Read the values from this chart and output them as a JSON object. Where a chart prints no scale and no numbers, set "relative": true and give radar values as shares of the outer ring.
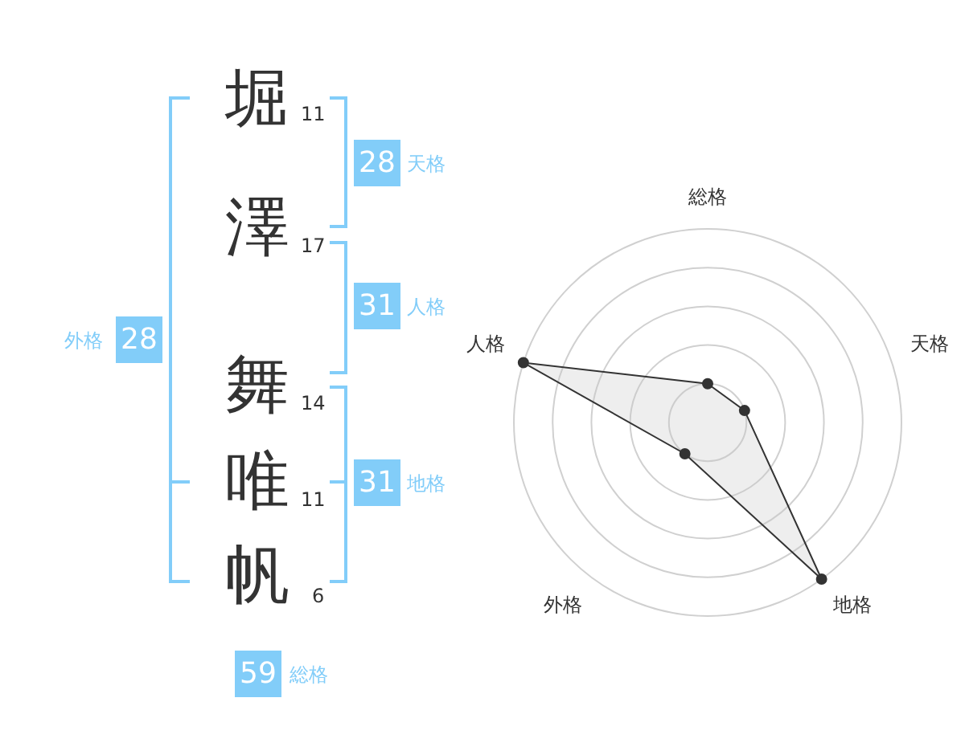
{
  "chart_data": [
    {
      "type": "other",
      "categories": [
        "堀",
        "澤",
        "舞",
        "唯",
        "帆"
      ],
      "values": [
        11,
        17,
        14,
        11,
        6
      ],
      "data_labels": true,
      "color": "#82cdf9",
      "annotations": [
        "28",
        "天格",
        "31",
        "人格",
        "31",
        "地格",
        "28",
        "外格",
        "59",
        "総格"
      ]
    },
    {
      "type": "radar",
      "categories": [
        "総格",
        "天格",
        "地格",
        "外格",
        "人格"
      ],
      "relative": true,
      "grid": true,
      "marker": "circle",
      "series": [
        {
          "color": "#333333",
          "values": [
            0.2,
            0.2,
            1,
            0.2,
            1
          ]
        }
      ]
    }
  ]
}
